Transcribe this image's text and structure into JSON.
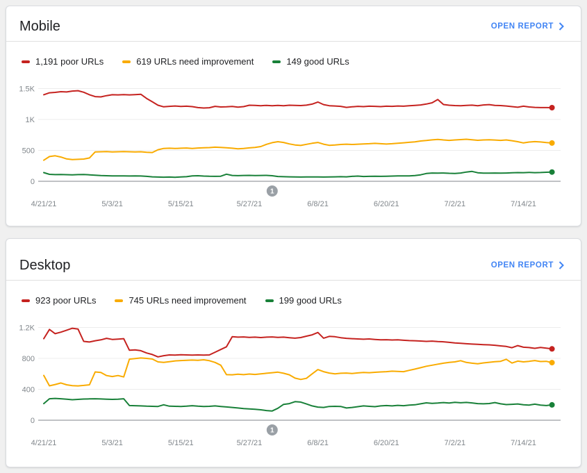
{
  "cards": [
    {
      "title": "Mobile",
      "open_report_label": "OPEN REPORT",
      "open_report_icon": "chevron-right-icon",
      "legend": [
        {
          "label": "1,191 poor URLs",
          "color": "#c5221f"
        },
        {
          "label": "619 URLs need improvement",
          "color": "#f9ab00"
        },
        {
          "label": "149 good URLs",
          "color": "#188038"
        }
      ]
    },
    {
      "title": "Desktop",
      "open_report_label": "OPEN REPORT",
      "open_report_icon": "chevron-right-icon",
      "legend": [
        {
          "label": "923 poor URLs",
          "color": "#c5221f"
        },
        {
          "label": "745 URLs need improvement",
          "color": "#f9ab00"
        },
        {
          "label": "199 good URLs",
          "color": "#188038"
        }
      ]
    }
  ],
  "chart_data": [
    {
      "type": "line",
      "title": "Mobile",
      "x_start_date": "4/21/21",
      "x_interval": "daily",
      "x_tick_labels": [
        "4/21/21",
        "5/3/21",
        "5/15/21",
        "5/27/21",
        "6/8/21",
        "6/20/21",
        "7/2/21",
        "7/14/21"
      ],
      "x_tick_indices": [
        0,
        12,
        24,
        36,
        48,
        60,
        72,
        84
      ],
      "y_ticks": [
        {
          "value": 0,
          "label": "0"
        },
        {
          "value": 500,
          "label": "500"
        },
        {
          "value": 1000,
          "label": "1K"
        },
        {
          "value": 1500,
          "label": "1.5K"
        }
      ],
      "ylim": [
        0,
        1650
      ],
      "grid": true,
      "legend_position": "top",
      "annotation_marker": {
        "label": "1",
        "x_index": 40
      },
      "series": [
        {
          "name": "poor URLs",
          "color": "#c5221f",
          "last_value": 1191,
          "values": [
            1400,
            1432,
            1438,
            1450,
            1445,
            1460,
            1465,
            1440,
            1400,
            1370,
            1365,
            1385,
            1400,
            1398,
            1402,
            1398,
            1402,
            1408,
            1340,
            1287,
            1230,
            1205,
            1212,
            1218,
            1210,
            1215,
            1208,
            1192,
            1185,
            1190,
            1212,
            1202,
            1205,
            1210,
            1200,
            1208,
            1230,
            1228,
            1222,
            1228,
            1222,
            1228,
            1222,
            1230,
            1228,
            1225,
            1232,
            1248,
            1282,
            1240,
            1222,
            1218,
            1212,
            1195,
            1205,
            1212,
            1208,
            1215,
            1212,
            1208,
            1215,
            1212,
            1218,
            1215,
            1222,
            1228,
            1235,
            1250,
            1270,
            1322,
            1242,
            1230,
            1225,
            1222,
            1228,
            1232,
            1222,
            1235,
            1240,
            1228,
            1225,
            1218,
            1208,
            1198,
            1215,
            1202,
            1196,
            1192,
            1192,
            1191
          ]
        },
        {
          "name": "URLs need improvement",
          "color": "#f9ab00",
          "last_value": 619,
          "values": [
            340,
            400,
            412,
            392,
            362,
            352,
            355,
            360,
            378,
            475,
            478,
            480,
            475,
            478,
            480,
            477,
            474,
            478,
            470,
            465,
            510,
            532,
            535,
            530,
            535,
            538,
            532,
            538,
            542,
            545,
            552,
            548,
            542,
            535,
            525,
            532,
            540,
            548,
            562,
            598,
            625,
            640,
            628,
            605,
            588,
            580,
            598,
            615,
            628,
            600,
            582,
            588,
            596,
            600,
            596,
            600,
            604,
            608,
            614,
            608,
            602,
            608,
            616,
            622,
            630,
            638,
            652,
            660,
            670,
            678,
            668,
            662,
            668,
            674,
            680,
            672,
            663,
            668,
            672,
            667,
            662,
            668,
            656,
            640,
            620,
            635,
            642,
            636,
            626,
            619
          ]
        },
        {
          "name": "good URLs",
          "color": "#188038",
          "last_value": 149,
          "values": [
            140,
            112,
            108,
            110,
            107,
            105,
            108,
            110,
            104,
            98,
            92,
            90,
            88,
            86,
            88,
            85,
            87,
            85,
            80,
            72,
            68,
            66,
            68,
            65,
            70,
            74,
            86,
            90,
            84,
            81,
            80,
            82,
            115,
            94,
            91,
            94,
            95,
            92,
            94,
            95,
            90,
            78,
            74,
            72,
            70,
            68,
            70,
            71,
            70,
            68,
            70,
            72,
            74,
            72,
            80,
            84,
            78,
            80,
            81,
            80,
            82,
            84,
            86,
            86,
            88,
            92,
            104,
            126,
            134,
            131,
            134,
            129,
            127,
            134,
            149,
            160,
            138,
            131,
            132,
            134,
            131,
            134,
            137,
            141,
            139,
            144,
            139,
            142,
            146,
            149
          ]
        }
      ]
    },
    {
      "type": "line",
      "title": "Desktop",
      "x_start_date": "4/21/21",
      "x_interval": "daily",
      "x_tick_labels": [
        "4/21/21",
        "5/3/21",
        "5/15/21",
        "5/27/21",
        "6/8/21",
        "6/20/21",
        "7/2/21",
        "7/14/21"
      ],
      "x_tick_indices": [
        0,
        12,
        24,
        36,
        48,
        60,
        72,
        84
      ],
      "y_ticks": [
        {
          "value": 0,
          "label": "0"
        },
        {
          "value": 400,
          "label": "400"
        },
        {
          "value": 800,
          "label": "800"
        },
        {
          "value": 1200,
          "label": "1.2K"
        }
      ],
      "ylim": [
        0,
        1320
      ],
      "grid": true,
      "legend_position": "top",
      "annotation_marker": {
        "label": "1",
        "x_index": 40
      },
      "series": [
        {
          "name": "poor URLs",
          "color": "#c5221f",
          "last_value": 923,
          "values": [
            1055,
            1175,
            1120,
            1140,
            1165,
            1190,
            1180,
            1020,
            1012,
            1028,
            1040,
            1060,
            1045,
            1050,
            1055,
            905,
            910,
            900,
            870,
            850,
            820,
            835,
            845,
            843,
            848,
            845,
            842,
            845,
            843,
            845,
            880,
            915,
            950,
            1080,
            1075,
            1078,
            1072,
            1075,
            1070,
            1075,
            1078,
            1072,
            1075,
            1068,
            1062,
            1070,
            1088,
            1105,
            1135,
            1062,
            1085,
            1080,
            1068,
            1060,
            1055,
            1052,
            1048,
            1052,
            1045,
            1040,
            1042,
            1038,
            1040,
            1035,
            1030,
            1028,
            1025,
            1020,
            1024,
            1018,
            1015,
            1008,
            1000,
            995,
            990,
            985,
            982,
            978,
            975,
            970,
            962,
            955,
            938,
            965,
            945,
            940,
            930,
            942,
            932,
            923
          ]
        },
        {
          "name": "URLs need improvement",
          "color": "#f9ab00",
          "last_value": 745,
          "values": [
            580,
            445,
            462,
            482,
            458,
            448,
            444,
            450,
            458,
            625,
            618,
            578,
            565,
            578,
            560,
            790,
            798,
            805,
            800,
            792,
            755,
            748,
            758,
            768,
            772,
            775,
            778,
            775,
            782,
            770,
            748,
            712,
            590,
            588,
            595,
            590,
            598,
            592,
            600,
            608,
            615,
            622,
            608,
            588,
            545,
            528,
            542,
            600,
            655,
            628,
            610,
            600,
            608,
            610,
            605,
            612,
            618,
            615,
            620,
            625,
            628,
            635,
            632,
            628,
            645,
            662,
            680,
            698,
            712,
            725,
            738,
            748,
            755,
            770,
            748,
            738,
            730,
            742,
            750,
            758,
            762,
            788,
            740,
            765,
            755,
            762,
            772,
            760,
            762,
            745
          ]
        },
        {
          "name": "good URLs",
          "color": "#188038",
          "last_value": 199,
          "values": [
            215,
            278,
            282,
            278,
            272,
            265,
            270,
            274,
            276,
            278,
            275,
            272,
            270,
            272,
            278,
            190,
            188,
            185,
            182,
            180,
            178,
            200,
            182,
            180,
            178,
            182,
            188,
            182,
            178,
            180,
            185,
            178,
            172,
            165,
            158,
            150,
            146,
            142,
            135,
            125,
            120,
            155,
            205,
            215,
            240,
            235,
            210,
            185,
            170,
            165,
            178,
            180,
            178,
            158,
            165,
            175,
            185,
            180,
            175,
            185,
            190,
            185,
            192,
            188,
            195,
            200,
            212,
            225,
            218,
            222,
            228,
            222,
            232,
            226,
            230,
            224,
            215,
            212,
            216,
            228,
            212,
            202,
            206,
            210,
            200,
            196,
            208,
            196,
            190,
            199
          ]
        }
      ]
    }
  ]
}
